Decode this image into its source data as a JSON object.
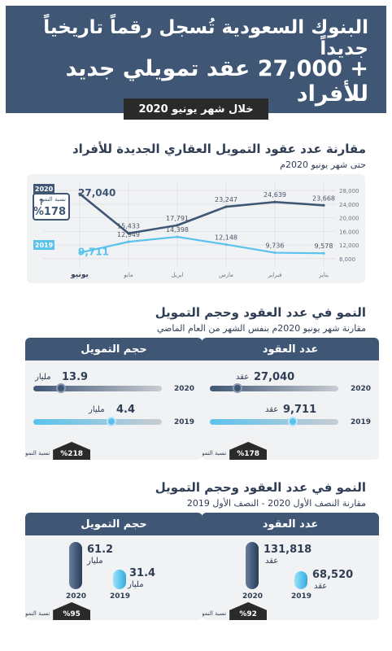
{
  "header": {
    "line1": "البنوك السعودية تُسجل رقماً تاريخياً جديداً",
    "line2": "+ 27,000 عقد تمويلي جديد للأفراد",
    "period": "خلال شهر يونيو 2020"
  },
  "section1": {
    "title": "مقارنة عدد عقود التمويل العقاري الجديدة للأفراد",
    "subtitle": "حتى شهر يونيو 2020م",
    "badge_2020": "2020",
    "badge_2019": "2019",
    "growth_label": "نسبة النمو",
    "growth_arrow": "↑",
    "growth_value": "%178"
  },
  "chart_data": {
    "type": "line",
    "categories": [
      "يناير",
      "فبراير",
      "مارس",
      "ابريل",
      "مايو",
      "يونيو"
    ],
    "series": [
      {
        "name": "2020",
        "values": [
          23668,
          24639,
          23247,
          17791,
          15433,
          27040
        ],
        "color": "#3f5675"
      },
      {
        "name": "2019",
        "values": [
          9578,
          9736,
          12148,
          14398,
          12949,
          9711
        ],
        "color": "#59c3ee"
      }
    ],
    "value_labels_2020": [
      "23,668",
      "24,639",
      "23,247",
      "17,791",
      "15,433",
      "27,040"
    ],
    "value_labels_2019": [
      "9,578",
      "9,736",
      "12,148",
      "14,398",
      "12,949",
      "9,711"
    ],
    "yticks": [
      8000,
      12000,
      16000,
      20000,
      24000,
      28000
    ],
    "ytick_labels": [
      "8,000",
      "12,000",
      "16,000",
      "20,000",
      "24,000",
      "28,000"
    ],
    "ylim": [
      7000,
      29000
    ],
    "grid": true
  },
  "section2": {
    "title": "النمو في عدد العقود وحجم التمويل",
    "subtitle": "مقارنة شهر يونيو 2020م بنفس الشهر من العام الماضي",
    "contracts_card": {
      "title": "عدد العقود",
      "val_2020": "27,040",
      "unit_2020": "عقد",
      "val_2019": "9,711",
      "unit_2019": "عقد",
      "growth_label": "نسبة النمو",
      "growth_value": "%178"
    },
    "finance_card": {
      "title": "حجم التمويل",
      "val_2020": "13.9",
      "unit_2020": "مليار",
      "val_2019": "4.4",
      "unit_2019": "مليار",
      "growth_label": "نسبة النمو",
      "growth_value": "%218"
    }
  },
  "section3": {
    "title": "النمو في عدد العقود وحجم التمويل",
    "subtitle": "مقارنة النصف الأول 2020 - النصف الأول 2019",
    "contracts_card": {
      "title": "عدد العقود",
      "val_2020": "131,818",
      "unit_2020": "عقد",
      "val_2019": "68,520",
      "unit_2019": "عقد",
      "growth_label": "نسبة النمو",
      "growth_value": "%92"
    },
    "finance_card": {
      "title": "حجم التمويل",
      "val_2020": "61.2",
      "unit_2020": "مليار",
      "val_2019": "31.4",
      "unit_2019": "مليار",
      "growth_label": "نسبة النمو",
      "growth_value": "%95"
    }
  },
  "labels": {
    "year_2020": "2020",
    "year_2019": "2019"
  }
}
